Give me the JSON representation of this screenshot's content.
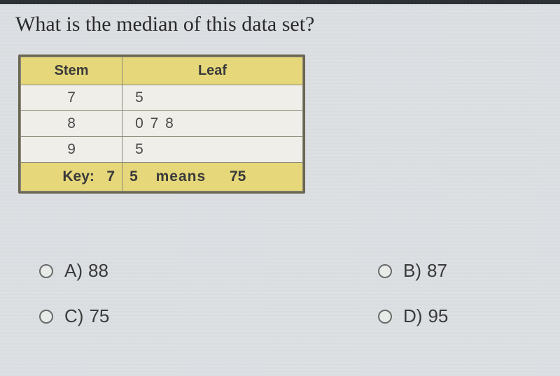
{
  "question": "What is the median of this data set?",
  "table": {
    "headers": {
      "stem": "Stem",
      "leaf": "Leaf"
    },
    "rows": [
      {
        "stem": "7",
        "leaf": "5"
      },
      {
        "stem": "8",
        "leaf": "0 7 8"
      },
      {
        "stem": "9",
        "leaf": "5"
      }
    ],
    "key": {
      "label": "Key:",
      "stem_example": "7",
      "leaf_example": "5",
      "means_word": "means",
      "value": "75"
    },
    "styles": {
      "header_bg": "#e5d77a",
      "border_color": "#6b6652",
      "cell_bg": "#efeee9",
      "font_family": "Verdana",
      "header_fontsize_pt": 15,
      "cell_fontsize_pt": 16
    }
  },
  "choices": [
    {
      "letter": "A)",
      "value": "88"
    },
    {
      "letter": "B)",
      "value": "87"
    },
    {
      "letter": "C)",
      "value": "75"
    },
    {
      "letter": "D)",
      "value": "95"
    }
  ],
  "layout": {
    "choice_grid": "2x2",
    "radio_border": "#6a6a6a",
    "text_color": "#3a3a3a",
    "page_bg": "#dce0e3"
  }
}
